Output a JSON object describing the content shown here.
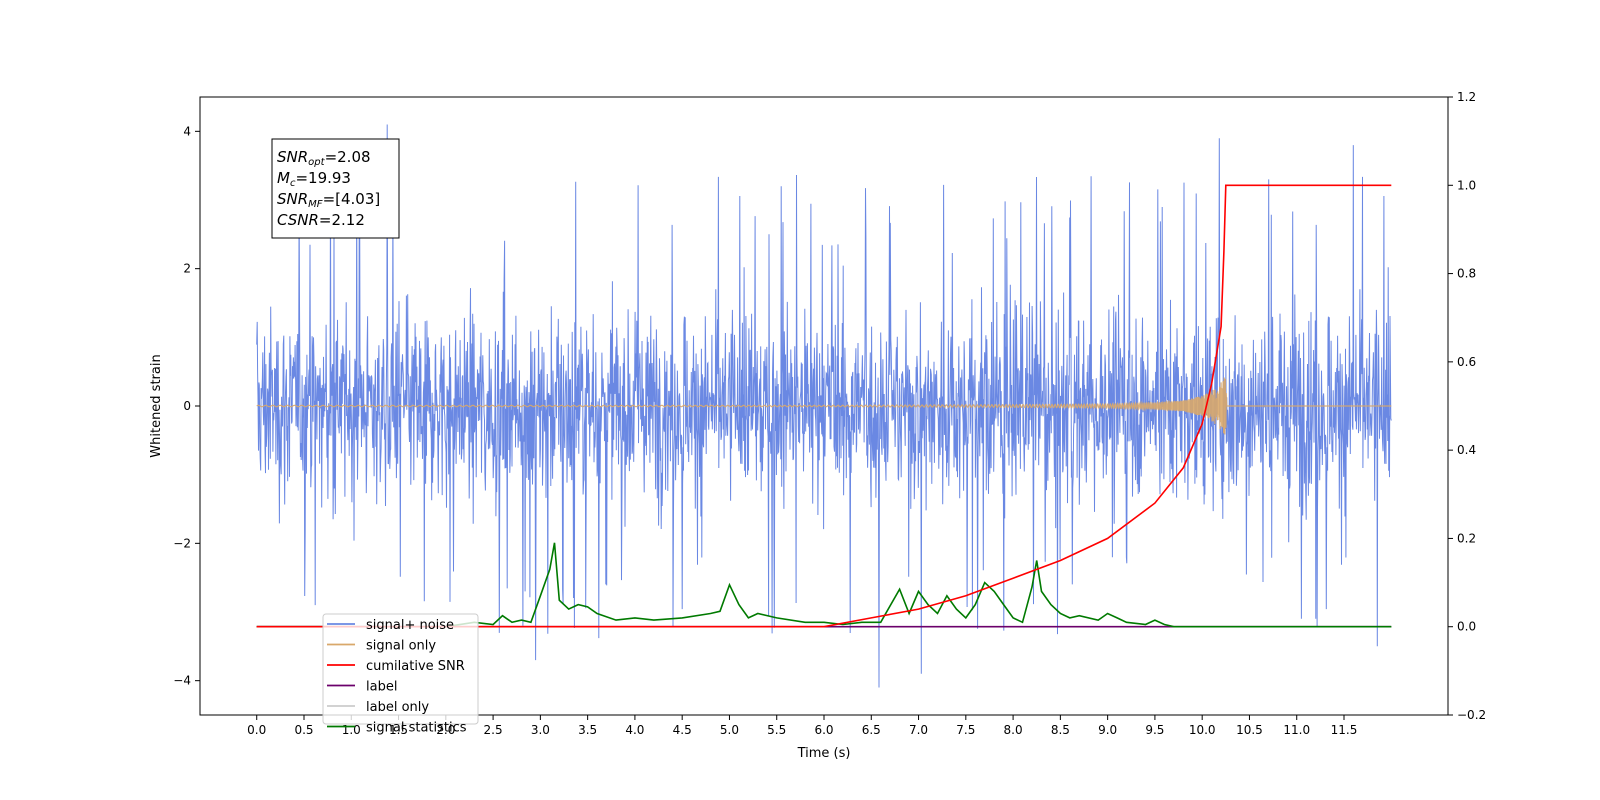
{
  "chart_data": {
    "type": "line",
    "xlabel": "Time (s)",
    "ylabel": "Whitened strain",
    "xlim": [
      -0.6,
      12.6
    ],
    "xticks": [
      0.0,
      0.5,
      1.0,
      1.5,
      2.0,
      2.5,
      3.0,
      3.5,
      4.0,
      4.5,
      5.0,
      5.5,
      6.0,
      6.5,
      7.0,
      7.5,
      8.0,
      8.5,
      9.0,
      9.5,
      10.0,
      10.5,
      11.0,
      11.5
    ],
    "xtick_labels": [
      "0.0",
      "0.5",
      "1.0",
      "1.5",
      "2.0",
      "2.5",
      "3.0",
      "3.5",
      "4.0",
      "4.5",
      "5.0",
      "5.5",
      "6.0",
      "6.5",
      "7.0",
      "7.5",
      "8.0",
      "8.5",
      "9.0",
      "9.5",
      "10.0",
      "10.5",
      "11.0",
      "11.5"
    ],
    "ylim_left": [
      -4.5,
      4.5
    ],
    "yticks_left": [
      -4,
      -2,
      0,
      2,
      4
    ],
    "ytick_labels_left": [
      "−4",
      "−2",
      "0",
      "2",
      "4"
    ],
    "ylim_right": [
      -0.2,
      1.2
    ],
    "yticks_right": [
      -0.2,
      0.0,
      0.2,
      0.4,
      0.6,
      0.8,
      1.0,
      1.2
    ],
    "ytick_labels_right": [
      "−0.2",
      "0.0",
      "0.2",
      "0.4",
      "0.6",
      "0.8",
      "1.0",
      "1.2"
    ],
    "grid": false,
    "legend_position": "bottom-left",
    "annotation": [
      {
        "main": "SNR",
        "sub": "opt",
        "value": "=2.08"
      },
      {
        "main": "M",
        "sub": "c",
        "value": "=19.93"
      },
      {
        "main": "SNR",
        "sub": "MF",
        "value": "=[4.03]"
      },
      {
        "main": "CSNR",
        "sub": "",
        "value": "=2.12"
      }
    ],
    "series": [
      {
        "name": "signal+ noise",
        "axis": "left",
        "color": "#6a88e3",
        "description": "noisy whitened strain spanning roughly -2.5 to +2.5 with spikes to about ±4",
        "x_range": [
          0.0,
          12.0
        ],
        "typical_band": [
          -2.3,
          2.4
        ],
        "peaks": [
          [
            1.38,
            4.1
          ],
          [
            11.6,
            3.8
          ],
          [
            10.18,
            3.9
          ],
          [
            6.58,
            -4.1
          ],
          [
            7.03,
            -3.9
          ],
          [
            0.62,
            -2.9
          ],
          [
            2.95,
            -3.7
          ],
          [
            11.85,
            -3.5
          ]
        ]
      },
      {
        "name": "signal only",
        "axis": "left",
        "color": "#d9a86a",
        "description": "chirp signal near zero growing in amplitude up to merger",
        "x": [
          0.0,
          6.0,
          8.0,
          9.0,
          9.5,
          9.8,
          10.0,
          10.1,
          10.2,
          10.25,
          10.26,
          12.0
        ],
        "amplitude": [
          0.01,
          0.01,
          0.02,
          0.03,
          0.05,
          0.08,
          0.15,
          0.22,
          0.35,
          0.45,
          0.0,
          0.0
        ]
      },
      {
        "name": "cumilative SNR",
        "axis": "right",
        "color": "#ff0000",
        "x": [
          0.0,
          6.0,
          6.5,
          7.0,
          7.5,
          8.0,
          8.5,
          9.0,
          9.5,
          9.8,
          10.0,
          10.1,
          10.2,
          10.23,
          10.25,
          12.0
        ],
        "values": [
          0.0,
          0.0,
          0.02,
          0.04,
          0.07,
          0.11,
          0.15,
          0.2,
          0.28,
          0.36,
          0.46,
          0.55,
          0.68,
          0.85,
          1.0,
          1.0
        ]
      },
      {
        "name": "label",
        "axis": "right",
        "color": "#6b006b",
        "x": [
          0.0,
          12.0
        ],
        "values": [
          0.0,
          0.0
        ]
      },
      {
        "name": "label only",
        "axis": "right",
        "color": "#cccccc",
        "x": [
          0.0,
          12.0
        ],
        "values": [
          0.0,
          0.0
        ]
      },
      {
        "name": "signal statistics",
        "axis": "right",
        "color": "#007a00",
        "x": [
          0.0,
          2.0,
          2.3,
          2.5,
          2.6,
          2.7,
          2.8,
          2.9,
          3.0,
          3.1,
          3.15,
          3.2,
          3.3,
          3.4,
          3.5,
          3.6,
          3.8,
          4.0,
          4.2,
          4.5,
          4.8,
          4.9,
          5.0,
          5.1,
          5.2,
          5.3,
          5.5,
          5.8,
          6.0,
          6.2,
          6.4,
          6.6,
          6.8,
          6.9,
          7.0,
          7.1,
          7.2,
          7.3,
          7.4,
          7.5,
          7.6,
          7.7,
          7.8,
          7.9,
          8.0,
          8.1,
          8.2,
          8.25,
          8.3,
          8.4,
          8.5,
          8.6,
          8.7,
          8.9,
          9.0,
          9.1,
          9.2,
          9.4,
          9.5,
          9.6,
          9.7,
          12.0
        ],
        "values": [
          0.0,
          0.0,
          0.01,
          0.005,
          0.025,
          0.01,
          0.015,
          0.01,
          0.07,
          0.13,
          0.19,
          0.06,
          0.04,
          0.05,
          0.045,
          0.03,
          0.015,
          0.02,
          0.015,
          0.02,
          0.03,
          0.035,
          0.095,
          0.05,
          0.02,
          0.03,
          0.02,
          0.01,
          0.01,
          0.005,
          0.01,
          0.01,
          0.085,
          0.03,
          0.08,
          0.05,
          0.03,
          0.07,
          0.04,
          0.02,
          0.05,
          0.1,
          0.08,
          0.05,
          0.02,
          0.01,
          0.09,
          0.15,
          0.08,
          0.05,
          0.03,
          0.02,
          0.025,
          0.015,
          0.03,
          0.02,
          0.01,
          0.005,
          0.015,
          0.005,
          0.0,
          0.0
        ]
      }
    ]
  }
}
